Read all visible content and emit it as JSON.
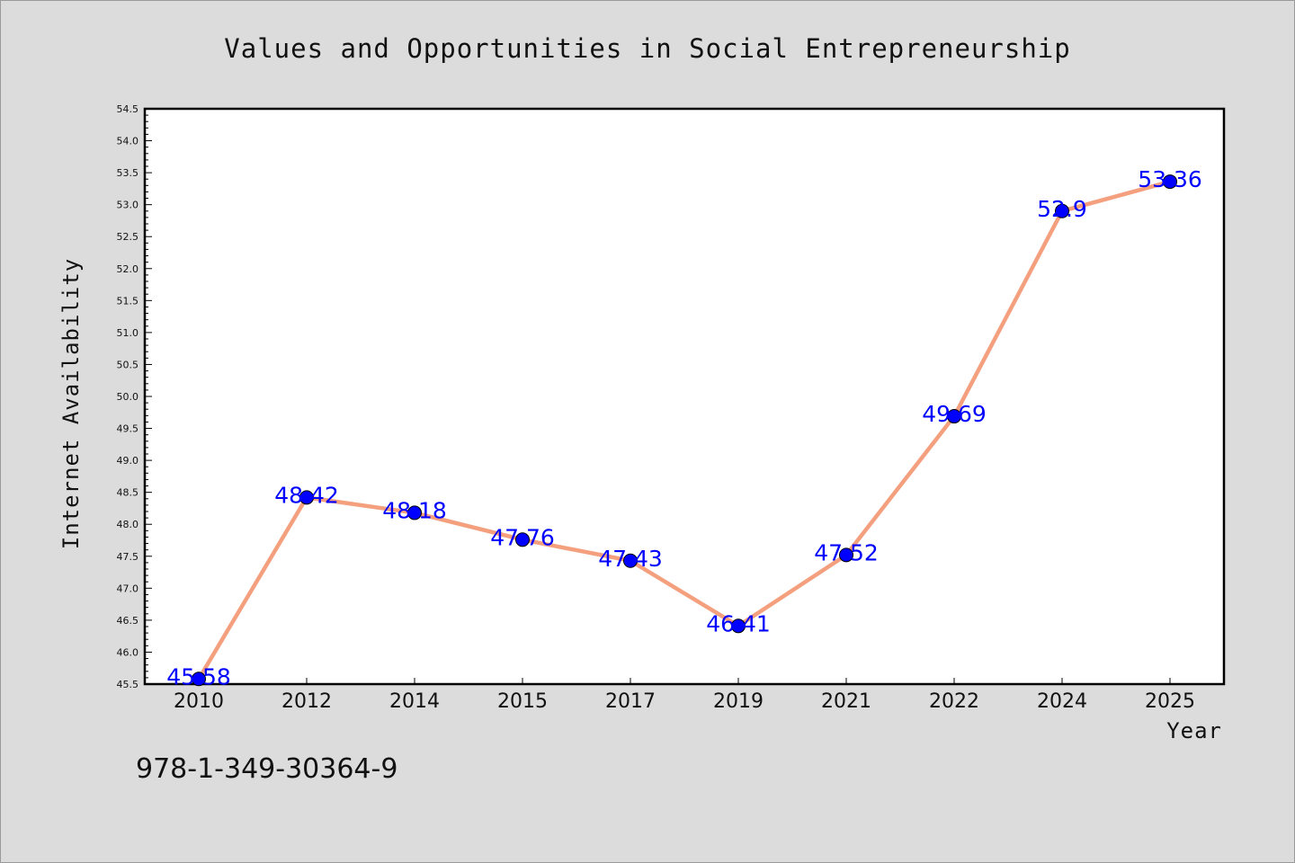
{
  "chart_data": {
    "type": "line",
    "title": "Values and Opportunities in Social Entrepreneurship",
    "xlabel": "Year",
    "ylabel": "Internet Availability",
    "categories": [
      "2010",
      "2012",
      "2014",
      "2015",
      "2017",
      "2019",
      "2021",
      "2022",
      "2024",
      "2025"
    ],
    "values": [
      45.58,
      48.42,
      48.18,
      47.76,
      47.43,
      46.41,
      47.52,
      49.69,
      52.9,
      53.36
    ],
    "data_labels": [
      "45.58",
      "48.42",
      "48.18",
      "47.76",
      "47.43",
      "46.41",
      "47.52",
      "49.69",
      "52.9",
      "53.36"
    ],
    "ylim": [
      45.5,
      54.5
    ],
    "yticks": [
      "45.5",
      "46.0",
      "46.5",
      "47.0",
      "47.5",
      "48.0",
      "48.5",
      "49.0",
      "49.5",
      "50.0",
      "50.5",
      "51.0",
      "51.5",
      "52.0",
      "52.5",
      "53.0",
      "53.5",
      "54.0",
      "54.5"
    ],
    "grid": false,
    "line_color": "#f4a07f",
    "marker_color": "#0000ff",
    "label_color": "#0000ff"
  },
  "footer": {
    "isbn": "978-1-349-30364-9"
  }
}
